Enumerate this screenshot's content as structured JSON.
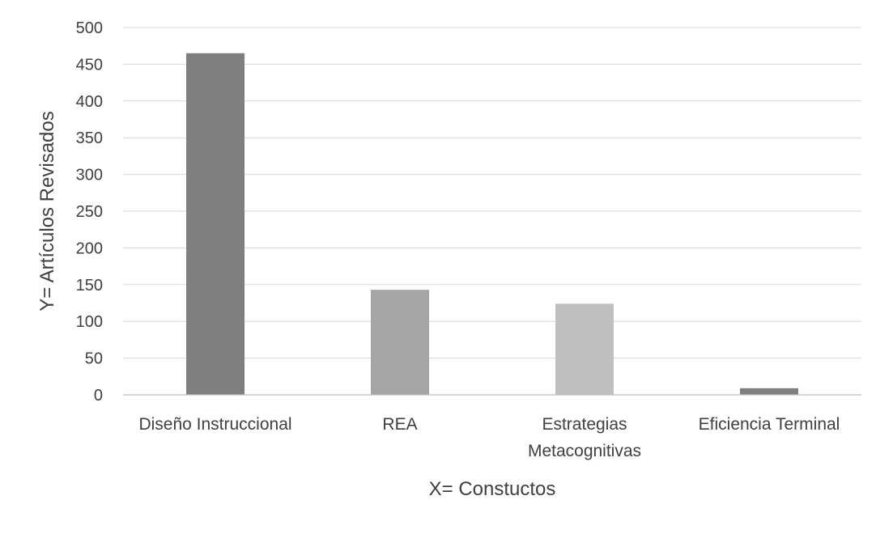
{
  "chart_data": {
    "type": "bar",
    "title": "",
    "categories": [
      "Diseño Instruccional",
      "REA",
      "Estrategias Metacognitivas",
      "Eficiencia Terminal"
    ],
    "category_lines": [
      [
        "Diseño Instruccional"
      ],
      [
        "REA"
      ],
      [
        "Estrategias",
        "Metacognitivas"
      ],
      [
        "Eficiencia Terminal"
      ]
    ],
    "values": [
      465,
      143,
      124,
      9
    ],
    "bar_colors": [
      "#7f7f7f",
      "#a5a5a5",
      "#bfbfbf",
      "#7f7f7f"
    ],
    "xlabel": "X= Constuctos",
    "ylabel": "Y= Artículos Revisados",
    "ylim": [
      0,
      500
    ],
    "yticks": [
      0,
      50,
      100,
      150,
      200,
      250,
      300,
      350,
      400,
      450,
      500
    ],
    "grid": true,
    "legend": "none"
  }
}
